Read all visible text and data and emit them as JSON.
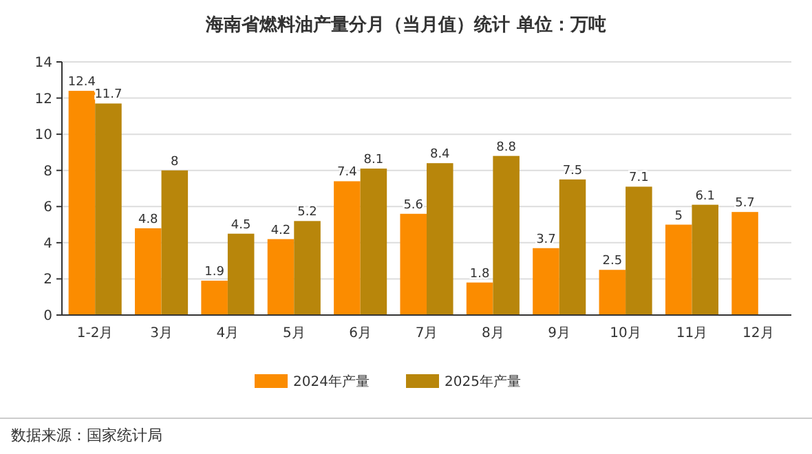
{
  "chart_data": {
    "type": "bar",
    "title": "海南省燃料油产量分月（当月值）统计  单位：万吨",
    "categories": [
      "1-2月",
      "3月",
      "4月",
      "5月",
      "6月",
      "7月",
      "8月",
      "9月",
      "10月",
      "11月",
      "12月"
    ],
    "series": [
      {
        "name": "2024年产量",
        "color": "#fb8c00",
        "values": [
          12.4,
          4.8,
          1.9,
          4.2,
          7.4,
          5.6,
          1.8,
          3.7,
          2.5,
          5,
          5.7
        ]
      },
      {
        "name": "2025年产量",
        "color": "#b8860b",
        "values": [
          11.7,
          8,
          4.5,
          5.2,
          8.1,
          8.4,
          8.8,
          7.5,
          7.1,
          6.1,
          null
        ]
      }
    ],
    "ylim": [
      0,
      14
    ],
    "yticks": [
      0,
      2,
      4,
      6,
      8,
      10,
      12,
      14
    ],
    "grid": "y",
    "legend": "bottom",
    "data_labels": true,
    "annotations": [
      "数据来源：国家统计局"
    ]
  }
}
